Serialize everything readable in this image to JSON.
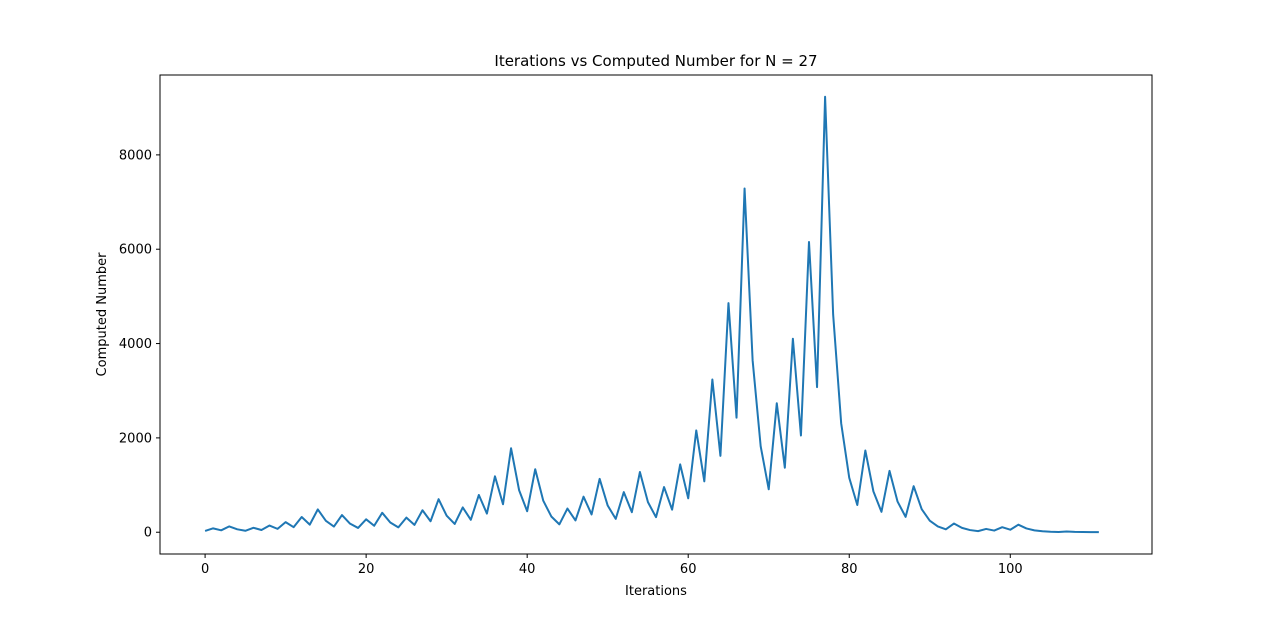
{
  "chart_data": {
    "type": "line",
    "title": "Iterations vs Computed Number for N = 27",
    "xlabel": "Iterations",
    "ylabel": "Computed Number",
    "xlim": [
      -5.6,
      117.6
    ],
    "ylim": [
      -461.5,
      9693.5
    ],
    "xticks": [
      0,
      20,
      40,
      60,
      80,
      100
    ],
    "yticks": [
      0,
      2000,
      4000,
      6000,
      8000
    ],
    "grid": false,
    "legend": "none",
    "series": [
      {
        "color": "#1f77b4",
        "x": [
          0,
          1,
          2,
          3,
          4,
          5,
          6,
          7,
          8,
          9,
          10,
          11,
          12,
          13,
          14,
          15,
          16,
          17,
          18,
          19,
          20,
          21,
          22,
          23,
          24,
          25,
          26,
          27,
          28,
          29,
          30,
          31,
          32,
          33,
          34,
          35,
          36,
          37,
          38,
          39,
          40,
          41,
          42,
          43,
          44,
          45,
          46,
          47,
          48,
          49,
          50,
          51,
          52,
          53,
          54,
          55,
          56,
          57,
          58,
          59,
          60,
          61,
          62,
          63,
          64,
          65,
          66,
          67,
          68,
          69,
          70,
          71,
          72,
          73,
          74,
          75,
          76,
          77,
          78,
          79,
          80,
          81,
          82,
          83,
          84,
          85,
          86,
          87,
          88,
          89,
          90,
          91,
          92,
          93,
          94,
          95,
          96,
          97,
          98,
          99,
          100,
          101,
          102,
          103,
          104,
          105,
          106,
          107,
          108,
          109,
          110,
          111
        ],
        "y": [
          27,
          82,
          41,
          124,
          62,
          31,
          94,
          47,
          142,
          71,
          214,
          107,
          322,
          161,
          484,
          242,
          121,
          364,
          182,
          91,
          274,
          137,
          412,
          206,
          103,
          310,
          155,
          466,
          233,
          700,
          350,
          175,
          526,
          263,
          790,
          395,
          1186,
          593,
          1780,
          890,
          445,
          1336,
          668,
          334,
          167,
          502,
          251,
          754,
          377,
          1132,
          566,
          283,
          850,
          425,
          1276,
          638,
          319,
          958,
          479,
          1438,
          719,
          2158,
          1079,
          3238,
          1619,
          4858,
          2429,
          7288,
          3644,
          1822,
          911,
          2734,
          1367,
          4102,
          2051,
          6154,
          3077,
          9232,
          4616,
          2308,
          1154,
          577,
          1732,
          866,
          433,
          1300,
          650,
          325,
          976,
          488,
          244,
          122,
          61,
          184,
          92,
          46,
          23,
          70,
          35,
          106,
          53,
          160,
          80,
          40,
          20,
          10,
          5,
          16,
          8,
          4,
          2,
          1
        ]
      }
    ]
  }
}
